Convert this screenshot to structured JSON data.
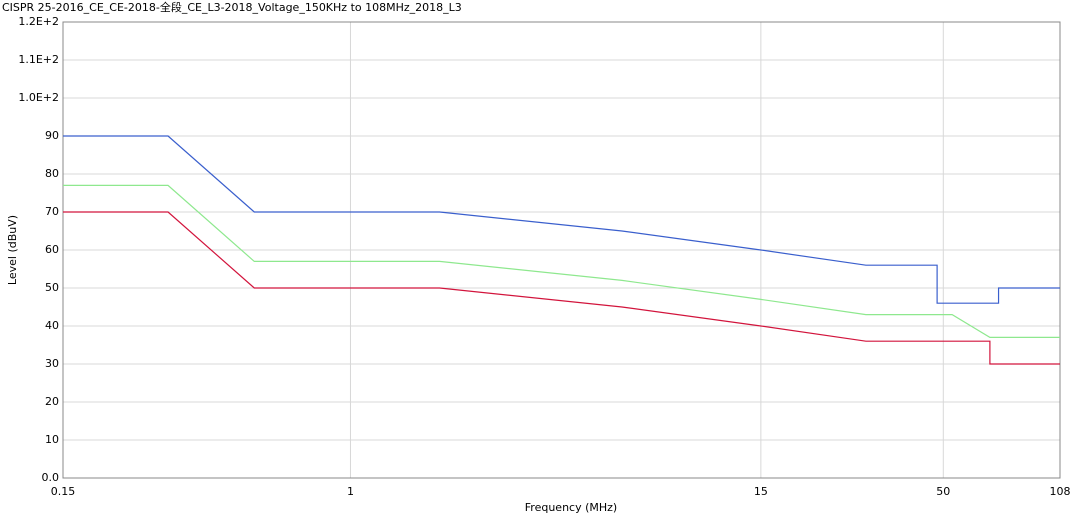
{
  "chart_data": {
    "type": "line",
    "title": "CISPR 25-2016_CE_CE-2018-全段_CE_L3-2018_Voltage_150KHz to 108MHz_2018_L3",
    "xlabel": "Frequency (MHz)",
    "ylabel": "Level (dBuV)",
    "xscale": "log",
    "grid": true,
    "xlim": [
      0.15,
      108
    ],
    "xticks": [
      0.15,
      1,
      15,
      50,
      108
    ],
    "ylim": [
      0,
      120
    ],
    "yticks": [
      {
        "value": 0,
        "label": "0.0"
      },
      10,
      20,
      30,
      40,
      50,
      60,
      70,
      80,
      90,
      {
        "value": 100,
        "label": "1.0E+2"
      },
      {
        "value": 110,
        "label": "1.1E+2"
      },
      {
        "value": 120,
        "label": "1.2E+2"
      }
    ],
    "series": [
      {
        "color": "#3a5fcd",
        "x": [
          0.15,
          0.3,
          0.53,
          1.8,
          6,
          15,
          30,
          48,
          48,
          72,
          72,
          108
        ],
        "values": [
          90,
          90,
          70,
          70,
          65,
          60,
          56,
          56,
          46,
          46,
          50,
          50
        ]
      },
      {
        "color": "#8ee88e",
        "x": [
          0.15,
          0.3,
          0.53,
          1.8,
          6,
          15,
          30,
          53,
          68,
          108
        ],
        "values": [
          77,
          77,
          57,
          57,
          52,
          47,
          43,
          43,
          37,
          37
        ]
      },
      {
        "color": "#d2143c",
        "x": [
          0.15,
          0.3,
          0.53,
          1.8,
          6,
          15,
          30,
          68,
          68,
          108
        ],
        "values": [
          70,
          70,
          50,
          50,
          45,
          40,
          36,
          36,
          30,
          30
        ]
      }
    ]
  }
}
